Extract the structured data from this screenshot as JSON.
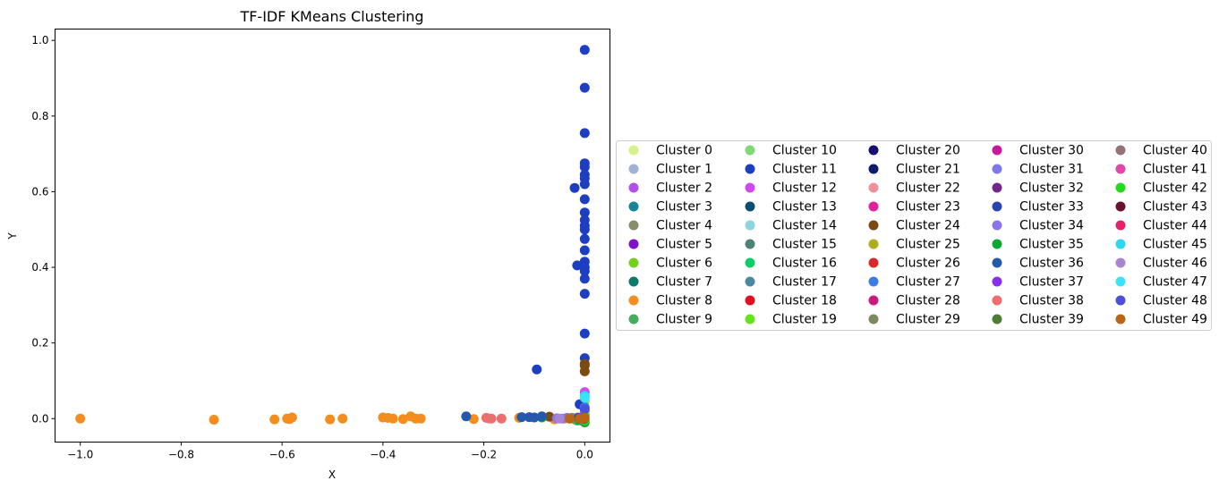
{
  "chart_data": {
    "type": "scatter",
    "title": "TF-IDF KMeans Clustering",
    "xlabel": "X",
    "ylabel": "Y",
    "xlim": [
      -1.05,
      0.05
    ],
    "ylim": [
      -0.062,
      1.03
    ],
    "x_ticks": [
      -1.0,
      -0.8,
      -0.6,
      -0.4,
      -0.2,
      0.0
    ],
    "x_tick_labels": [
      "−1.0",
      "−0.8",
      "−0.6",
      "−0.4",
      "−0.2",
      "0.0"
    ],
    "y_ticks": [
      0.0,
      0.2,
      0.4,
      0.6,
      0.8,
      1.0
    ],
    "y_tick_labels": [
      "0.0",
      "0.2",
      "0.4",
      "0.6",
      "0.8",
      "1.0"
    ],
    "grid": false,
    "legend_placement": "outside-right",
    "legend_columns": 5,
    "series": [
      {
        "name": "Cluster 0",
        "color": "#d4f28a",
        "points": [
          [
            -0.005,
            0.0
          ]
        ]
      },
      {
        "name": "Cluster 1",
        "color": "#a3b1d7",
        "points": [
          [
            -0.015,
            0.003
          ],
          [
            -0.01,
            0.001
          ]
        ]
      },
      {
        "name": "Cluster 2",
        "color": "#b44fe6",
        "points": [
          [
            -0.003,
            0.002
          ]
        ]
      },
      {
        "name": "Cluster 3",
        "color": "#17849a",
        "points": [
          [
            -0.004,
            0.001
          ]
        ]
      },
      {
        "name": "Cluster 4",
        "color": "#8a8d6a",
        "points": [
          [
            -0.03,
            0.001
          ],
          [
            -0.02,
            0.0
          ]
        ]
      },
      {
        "name": "Cluster 5",
        "color": "#7f11c7",
        "points": [
          [
            -0.004,
            0.003
          ]
        ]
      },
      {
        "name": "Cluster 6",
        "color": "#73d11b",
        "points": [
          [
            -0.002,
            0.0
          ]
        ]
      },
      {
        "name": "Cluster 7",
        "color": "#0c7a68",
        "points": [
          [
            -0.003,
            -0.003
          ]
        ]
      },
      {
        "name": "Cluster 8",
        "color": "#f28d1e",
        "points": [
          [
            -1.0,
            0.0
          ],
          [
            -0.735,
            -0.003
          ],
          [
            -0.615,
            -0.002
          ],
          [
            -0.59,
            0.0
          ],
          [
            -0.585,
            -0.001
          ],
          [
            -0.58,
            0.003
          ],
          [
            -0.505,
            -0.002
          ],
          [
            -0.48,
            0.0
          ],
          [
            -0.4,
            0.003
          ],
          [
            -0.39,
            0.002
          ],
          [
            -0.38,
            0.0
          ],
          [
            -0.36,
            -0.001
          ],
          [
            -0.345,
            0.006
          ],
          [
            -0.335,
            0.0
          ],
          [
            -0.325,
            0.0
          ],
          [
            -0.22,
            -0.001
          ],
          [
            -0.13,
            0.002
          ],
          [
            -0.06,
            -0.002
          ],
          [
            -0.04,
            0.0
          ],
          [
            -0.02,
            -0.002
          ],
          [
            -0.01,
            0.002
          ],
          [
            -0.005,
            0.005
          ]
        ]
      },
      {
        "name": "Cluster 9",
        "color": "#45ad5b",
        "points": [
          [
            -0.015,
            -0.005
          ]
        ]
      },
      {
        "name": "Cluster 10",
        "color": "#82d878",
        "points": [
          [
            0.0,
            0.045
          ]
        ]
      },
      {
        "name": "Cluster 11",
        "color": "#1d3ec0",
        "points": [
          [
            0.0,
            0.975
          ],
          [
            0.0,
            0.875
          ],
          [
            0.0,
            0.755
          ],
          [
            0.0,
            0.675
          ],
          [
            0.0,
            0.665
          ],
          [
            0.0,
            0.645
          ],
          [
            0.0,
            0.635
          ],
          [
            0.0,
            0.62
          ],
          [
            -0.02,
            0.61
          ],
          [
            0.0,
            0.58
          ],
          [
            0.0,
            0.545
          ],
          [
            0.0,
            0.525
          ],
          [
            0.0,
            0.51
          ],
          [
            0.0,
            0.5
          ],
          [
            0.0,
            0.475
          ],
          [
            0.0,
            0.445
          ],
          [
            0.0,
            0.415
          ],
          [
            -0.015,
            0.405
          ],
          [
            0.0,
            0.4
          ],
          [
            0.0,
            0.39
          ],
          [
            0.0,
            0.37
          ],
          [
            0.0,
            0.33
          ],
          [
            0.0,
            0.225
          ],
          [
            0.0,
            0.16
          ],
          [
            -0.095,
            0.13
          ],
          [
            -0.01,
            0.038
          ]
        ]
      },
      {
        "name": "Cluster 12",
        "color": "#cf48f0",
        "points": [
          [
            0.0,
            0.07
          ]
        ]
      },
      {
        "name": "Cluster 13",
        "color": "#0c4f6c",
        "points": [
          [
            -0.002,
            0.002
          ]
        ]
      },
      {
        "name": "Cluster 14",
        "color": "#8dd3e0",
        "points": [
          [
            -0.001,
            0.004
          ]
        ]
      },
      {
        "name": "Cluster 15",
        "color": "#4f8176",
        "points": [
          [
            -0.008,
            0.001
          ]
        ]
      },
      {
        "name": "Cluster 16",
        "color": "#0ccf68",
        "points": [
          [
            0.0,
            0.01
          ]
        ]
      },
      {
        "name": "Cluster 17",
        "color": "#4a8aa0",
        "points": [
          [
            -0.006,
            -0.002
          ]
        ]
      },
      {
        "name": "Cluster 18",
        "color": "#e0101f",
        "points": [
          [
            -0.002,
            0.001
          ]
        ]
      },
      {
        "name": "Cluster 19",
        "color": "#66e21c",
        "points": [
          [
            0.0,
            0.02
          ]
        ]
      },
      {
        "name": "Cluster 20",
        "color": "#181070",
        "points": [
          [
            -0.001,
            -0.001
          ]
        ]
      },
      {
        "name": "Cluster 21",
        "color": "#0d1d6a",
        "points": [
          [
            -0.003,
            0.0
          ]
        ]
      },
      {
        "name": "Cluster 22",
        "color": "#f0909a",
        "points": [
          [
            -0.19,
            0.0
          ]
        ]
      },
      {
        "name": "Cluster 23",
        "color": "#e0229b",
        "points": [
          [
            -0.002,
            0.003
          ]
        ]
      },
      {
        "name": "Cluster 24",
        "color": "#7a4a10",
        "points": [
          [
            0.0,
            0.145
          ],
          [
            0.0,
            0.14
          ],
          [
            0.0,
            0.125
          ],
          [
            -0.07,
            0.005
          ]
        ]
      },
      {
        "name": "Cluster 25",
        "color": "#aead1d",
        "points": [
          [
            -0.004,
            0.002
          ]
        ]
      },
      {
        "name": "Cluster 26",
        "color": "#d82a2a",
        "points": [
          [
            -0.001,
            0.002
          ]
        ]
      },
      {
        "name": "Cluster 27",
        "color": "#3c7ce6",
        "points": [
          [
            0.0,
            0.03
          ]
        ]
      },
      {
        "name": "Cluster 28",
        "color": "#c91a7d",
        "points": [
          [
            -0.005,
            -0.001
          ]
        ]
      },
      {
        "name": "Cluster 29",
        "color": "#7b8a5e",
        "points": [
          [
            -0.025,
            0.002
          ]
        ]
      },
      {
        "name": "Cluster 30",
        "color": "#c7199d",
        "points": [
          [
            -0.002,
            -0.002
          ]
        ]
      },
      {
        "name": "Cluster 31",
        "color": "#7e79e8",
        "points": [
          [
            -0.035,
            0.002
          ],
          [
            -0.045,
            0.0
          ]
        ]
      },
      {
        "name": "Cluster 32",
        "color": "#76268a",
        "points": [
          [
            -0.003,
            0.004
          ]
        ]
      },
      {
        "name": "Cluster 33",
        "color": "#2a45b0",
        "points": [
          [
            -0.012,
            0.002
          ]
        ]
      },
      {
        "name": "Cluster 34",
        "color": "#8c74ec",
        "points": [
          [
            -0.055,
            0.001
          ]
        ]
      },
      {
        "name": "Cluster 35",
        "color": "#0ea832",
        "points": [
          [
            -0.085,
            0.003
          ],
          [
            0.0,
            -0.01
          ],
          [
            -0.01,
            -0.004
          ]
        ]
      },
      {
        "name": "Cluster 36",
        "color": "#2559ad",
        "points": [
          [
            -0.235,
            0.006
          ],
          [
            -0.125,
            0.004
          ],
          [
            -0.11,
            0.004
          ],
          [
            -0.1,
            0.003
          ],
          [
            -0.085,
            0.006
          ]
        ]
      },
      {
        "name": "Cluster 37",
        "color": "#8a2ef0",
        "points": [
          [
            -0.006,
            0.003
          ]
        ]
      },
      {
        "name": "Cluster 38",
        "color": "#ec6e6e",
        "points": [
          [
            -0.195,
            0.002
          ],
          [
            -0.185,
            0.0
          ],
          [
            -0.165,
            0.0
          ]
        ]
      },
      {
        "name": "Cluster 39",
        "color": "#4e7d36",
        "points": [
          [
            -0.002,
            -0.004
          ]
        ]
      },
      {
        "name": "Cluster 40",
        "color": "#967175",
        "points": [
          [
            -0.008,
            0.0
          ]
        ]
      },
      {
        "name": "Cluster 41",
        "color": "#e049a8",
        "points": [
          [
            -0.003,
            -0.001
          ]
        ]
      },
      {
        "name": "Cluster 42",
        "color": "#25d81b",
        "points": [
          [
            0.0,
            -0.005
          ]
        ]
      },
      {
        "name": "Cluster 43",
        "color": "#6a1030",
        "points": [
          [
            -0.001,
            0.0
          ]
        ]
      },
      {
        "name": "Cluster 44",
        "color": "#e6206a",
        "points": [
          [
            -0.002,
            0.0
          ]
        ]
      },
      {
        "name": "Cluster 45",
        "color": "#2ad7ef",
        "points": [
          [
            0.0,
            0.06
          ]
        ]
      },
      {
        "name": "Cluster 46",
        "color": "#a985d1",
        "points": [
          [
            -0.05,
            0.0
          ]
        ]
      },
      {
        "name": "Cluster 47",
        "color": "#3ae3f8",
        "points": [
          [
            0.0,
            0.055
          ]
        ]
      },
      {
        "name": "Cluster 48",
        "color": "#4a50d8",
        "points": [
          [
            0.0,
            0.025
          ]
        ]
      },
      {
        "name": "Cluster 49",
        "color": "#b86517",
        "points": [
          [
            -0.03,
            0.0
          ],
          [
            -0.01,
            0.0
          ],
          [
            0.0,
            0.002
          ]
        ]
      }
    ]
  }
}
